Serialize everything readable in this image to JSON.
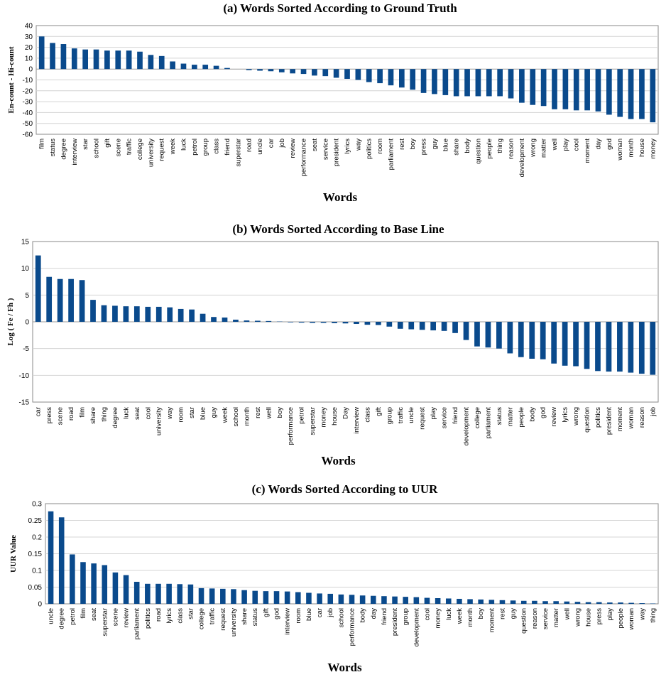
{
  "colors": {
    "bar": "#0a4a8c",
    "grid": "#d4d4d4",
    "axis": "#888888"
  },
  "chart_data": [
    {
      "type": "bar",
      "title": "(a) Words Sorted According to Ground Truth",
      "xlabel": "Words",
      "ylabel": "En-count - Hi-count",
      "ylim": [
        -60,
        40
      ],
      "yticks": [
        40,
        30,
        20,
        10,
        0,
        -10,
        -20,
        -30,
        -40,
        -50,
        -60
      ],
      "grid": true,
      "categories": [
        "film",
        "status",
        "degree",
        "interview",
        "star",
        "school",
        "gift",
        "scene",
        "traffic",
        "college",
        "university",
        "request",
        "week",
        "luck",
        "petrol",
        "group",
        "class",
        "friend",
        "superstar",
        "road",
        "uncle",
        "car",
        "job",
        "review",
        "performance",
        "seat",
        "service",
        "president",
        "lyrics",
        "way",
        "politics",
        "room",
        "parliament",
        "rest",
        "boy",
        "press",
        "guy",
        "blue",
        "share",
        "body",
        "question",
        "people",
        "thing",
        "reason",
        "development",
        "wrong",
        "matter",
        "well",
        "play",
        "cool",
        "moment",
        "day",
        "god",
        "woman",
        "month",
        "house",
        "money"
      ],
      "values": [
        30,
        24,
        23,
        19,
        18,
        18,
        17,
        17,
        17,
        16,
        13,
        12,
        7,
        5,
        4,
        4,
        3,
        1,
        0,
        -1,
        -1.5,
        -2,
        -3,
        -4,
        -4.5,
        -6,
        -6.5,
        -8,
        -9,
        -10,
        -12,
        -13,
        -15,
        -17,
        -19,
        -22,
        -23,
        -24,
        -25,
        -25,
        -25,
        -25,
        -25,
        -27,
        -31,
        -33,
        -34,
        -37,
        -37,
        -38,
        -38,
        -39,
        -42,
        -44,
        -46,
        -46,
        -49
      ]
    },
    {
      "type": "bar",
      "title": "(b) Words Sorted According to Base Line",
      "xlabel": "Words",
      "ylabel": "Log ( Fe / Fh )",
      "ylim": [
        -15,
        15
      ],
      "yticks": [
        15,
        10,
        5,
        0,
        -5,
        -10,
        -15
      ],
      "grid": true,
      "categories": [
        "car",
        "press",
        "scene",
        "road",
        "film",
        "share",
        "thing",
        "degree",
        "luck",
        "seat",
        "cool",
        "university",
        "way",
        "room",
        "star",
        "blue",
        "guy",
        "week",
        "school",
        "month",
        "rest",
        "well",
        "boy",
        "performance",
        "petrol",
        "superstar",
        "money",
        "house",
        "Day",
        "interview",
        "class",
        "gift",
        "group",
        "traffic",
        "uncle",
        "request",
        "play",
        "service",
        "friend",
        "development",
        "college",
        "parliament",
        "status",
        "matter",
        "people",
        "body",
        "god",
        "review",
        "lyrics",
        "wrong",
        "question",
        "politics",
        "president",
        "moment",
        "woman",
        "reason",
        "job"
      ],
      "values": [
        12.4,
        8.4,
        8.0,
        8.0,
        7.8,
        4.1,
        3.1,
        3.0,
        2.9,
        2.9,
        2.8,
        2.8,
        2.7,
        2.4,
        2.3,
        1.5,
        0.9,
        0.8,
        0.4,
        0.25,
        0.2,
        0.15,
        0.05,
        -0.1,
        -0.15,
        -0.2,
        -0.2,
        -0.25,
        -0.3,
        -0.4,
        -0.55,
        -0.6,
        -0.9,
        -1.3,
        -1.4,
        -1.5,
        -1.6,
        -1.7,
        -2.1,
        -3.4,
        -4.6,
        -4.8,
        -5.0,
        -5.9,
        -6.6,
        -6.9,
        -7.0,
        -7.8,
        -8.2,
        -8.3,
        -8.8,
        -9.2,
        -9.3,
        -9.3,
        -9.5,
        -9.7,
        -9.9
      ]
    },
    {
      "type": "bar",
      "title": "(c) Words Sorted According to UUR",
      "xlabel": "Words",
      "ylabel": "UUR Value",
      "ylim": [
        0,
        0.3
      ],
      "yticks": [
        0.3,
        0.25,
        0.2,
        0.15,
        0.1,
        0.05,
        0
      ],
      "grid": true,
      "categories": [
        "uncle",
        "degree",
        "petrol",
        "film",
        "seat",
        "superstar",
        "scene",
        "review",
        "parliament",
        "politics",
        "road",
        "lyrics",
        "class",
        "star",
        "college",
        "traffic",
        "request",
        "university",
        "share",
        "status",
        "gift",
        "god",
        "interview",
        "room",
        "blue",
        "car",
        "job",
        "school",
        "performance",
        "body",
        "day",
        "friend",
        "president",
        "group",
        "development",
        "cool",
        "money",
        "luck",
        "week",
        "month",
        "boy",
        "moment",
        "rest",
        "guy",
        "question",
        "reason",
        "service",
        "matter",
        "well",
        "wrong",
        "house",
        "press",
        "play",
        "people",
        "woman",
        "way",
        "thing"
      ],
      "values": [
        0.277,
        0.259,
        0.148,
        0.125,
        0.121,
        0.116,
        0.094,
        0.086,
        0.066,
        0.06,
        0.06,
        0.06,
        0.059,
        0.058,
        0.047,
        0.046,
        0.045,
        0.044,
        0.041,
        0.039,
        0.038,
        0.038,
        0.037,
        0.035,
        0.033,
        0.031,
        0.03,
        0.028,
        0.027,
        0.025,
        0.024,
        0.023,
        0.022,
        0.021,
        0.02,
        0.018,
        0.017,
        0.016,
        0.015,
        0.014,
        0.013,
        0.012,
        0.011,
        0.01,
        0.009,
        0.009,
        0.008,
        0.008,
        0.007,
        0.006,
        0.005,
        0.005,
        0.004,
        0.004,
        0.003,
        0.002,
        0.001
      ]
    }
  ]
}
